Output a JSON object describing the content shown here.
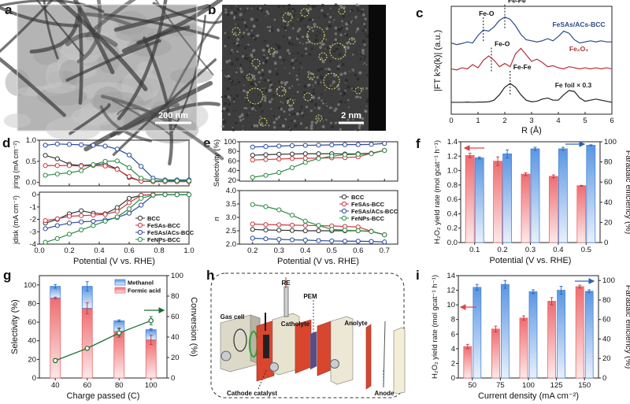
{
  "figure": {
    "panel_labels": {
      "a": "a",
      "b": "b",
      "c": "c",
      "d": "d",
      "e": "e",
      "f": "f",
      "g": "g",
      "h": "h",
      "i": "i"
    }
  },
  "images": {
    "a": {
      "scale_bar": "200 nm"
    },
    "b": {
      "scale_bar": "2 nm",
      "circle_color": "#e8e26a"
    }
  },
  "diagram_h": {
    "labels": {
      "re": "RE",
      "pem": "PEM",
      "gas_cell": "Gas cell",
      "catholyte": "Catholyte",
      "anolyte": "Anolyte",
      "cathode_catalyst": "Cathode catalyst",
      "anode": "Anode"
    }
  },
  "chart_data": [
    {
      "id": "c",
      "type": "line",
      "xlabel": "R (Å)",
      "ylabel": "|FT k³x(k)| (a.u.)",
      "xlim": [
        0,
        6
      ],
      "xticks": [
        "0",
        "1",
        "2",
        "3",
        "4",
        "5",
        "6"
      ],
      "ylim": [
        0,
        10
      ],
      "x": [
        0,
        0.2,
        0.4,
        0.6,
        0.8,
        1.0,
        1.2,
        1.4,
        1.6,
        1.8,
        2.0,
        2.2,
        2.4,
        2.6,
        2.8,
        3.0,
        3.2,
        3.4,
        3.6,
        3.8,
        4.0,
        4.2,
        4.4,
        4.6,
        4.8,
        5.0,
        5.2,
        5.4,
        5.6,
        5.8,
        6.0
      ],
      "series": [
        {
          "name": "FeSAs/ACs-BCC",
          "color": "#2b4a8b",
          "values": [
            6.6,
            6.45,
            6.55,
            6.7,
            6.6,
            7.3,
            7.8,
            7.7,
            8.1,
            8.7,
            9.0,
            8.8,
            8.2,
            7.4,
            6.9,
            6.8,
            6.7,
            6.8,
            7.0,
            6.8,
            7.2,
            7.7,
            7.5,
            6.9,
            6.6,
            6.7,
            6.8,
            6.7,
            6.8,
            6.7,
            6.7
          ]
        },
        {
          "name": "Fe₂O₃",
          "color": "#b0323a",
          "values": [
            4.2,
            4.1,
            4.3,
            4.2,
            4.6,
            4.3,
            5.0,
            5.4,
            5.0,
            4.4,
            4.7,
            4.4,
            5.6,
            6.1,
            5.5,
            4.9,
            5.1,
            4.8,
            4.4,
            4.5,
            4.3,
            4.2,
            4.4,
            4.3,
            4.2,
            4.3,
            4.2,
            4.3,
            4.2,
            4.3,
            4.2
          ]
        },
        {
          "name": "Fe foil × 0.3",
          "color": "#222222",
          "values": [
            1.1,
            1.1,
            1.1,
            1.12,
            1.1,
            1.12,
            1.12,
            1.15,
            1.3,
            1.8,
            2.5,
            2.85,
            2.5,
            1.8,
            1.3,
            1.15,
            1.2,
            1.4,
            1.5,
            1.3,
            1.3,
            1.8,
            2.2,
            2.1,
            1.5,
            1.2,
            1.3,
            1.4,
            1.3,
            1.2,
            1.1
          ]
        }
      ],
      "annotations": [
        {
          "text": "Fe-O",
          "x": 1.2,
          "series": 0
        },
        {
          "text": "Fe-Fe",
          "x": 2.0,
          "series": 0
        },
        {
          "text": "Fe-O",
          "x": 1.5,
          "series": 1
        },
        {
          "text": "Fe-Fe",
          "x": 2.2,
          "series": 2
        }
      ]
    },
    {
      "id": "d",
      "type": "line",
      "xlabel": "Potential (V vs. RHE)",
      "xlim": [
        0,
        1
      ],
      "xticks": [
        "0.0",
        "0.2",
        "0.4",
        "0.6",
        "0.8",
        "1.0"
      ],
      "x": [
        0.04,
        0.12,
        0.2,
        0.28,
        0.36,
        0.44,
        0.52,
        0.6,
        0.68,
        0.76,
        0.84,
        0.92,
        1.0
      ],
      "legend": "bottom-right",
      "subplots": [
        {
          "ylabel": "jring (mA cm⁻²)",
          "ylim": [
            -0.08,
            1.0
          ],
          "yticks": [
            "0.0",
            "0.5",
            "1.0"
          ],
          "series": [
            {
              "name": "BCC",
              "color": "#333333",
              "values": [
                0.64,
                0.56,
                0.43,
                0.4,
                0.42,
                0.44,
                0.32,
                0.12,
                0.03,
                0.03,
                0.03,
                0.03,
                0.03
              ]
            },
            {
              "name": "FeSAs-BCC",
              "color": "#c8383e",
              "values": [
                0.4,
                0.4,
                0.4,
                0.39,
                0.4,
                0.39,
                0.31,
                0.14,
                0.03,
                0.02,
                0.02,
                0.02,
                0.02
              ]
            },
            {
              "name": "FeSAs/ACs-BCC",
              "color": "#2b4a9b",
              "values": [
                0.88,
                0.91,
                0.9,
                0.89,
                0.88,
                0.86,
                0.79,
                0.65,
                0.38,
                0.1,
                0.06,
                0.06,
                0.06
              ]
            },
            {
              "name": "FeNPs-BCC",
              "color": "#2e8b45",
              "values": [
                0.17,
                0.2,
                0.23,
                0.28,
                0.42,
                0.5,
                0.51,
                0.35,
                0.1,
                0.04,
                0.04,
                0.04,
                0.04
              ]
            }
          ]
        },
        {
          "ylabel": "jdisk (mA cm⁻²)",
          "ylim": [
            -4,
            0.2
          ],
          "yticks": [
            "-4",
            "-3",
            "-2",
            "-1",
            "0"
          ],
          "series": [
            {
              "name": "BCC",
              "color": "#333333",
              "values": [
                -2.3,
                -2.0,
                -1.55,
                -1.3,
                -1.5,
                -1.55,
                -1.05,
                -0.3,
                -0.05,
                0,
                0,
                0,
                0
              ]
            },
            {
              "name": "FeSAs-BCC",
              "color": "#c8383e",
              "values": [
                -2.1,
                -1.95,
                -1.75,
                -1.7,
                -1.65,
                -1.6,
                -1.35,
                -0.65,
                -0.05,
                0,
                0,
                0,
                0
              ]
            },
            {
              "name": "FeSAs/ACs-BCC",
              "color": "#2b4a9b",
              "values": [
                -2.75,
                -2.5,
                -2.3,
                -2.2,
                -2.15,
                -2.05,
                -1.85,
                -1.5,
                -0.85,
                -0.05,
                0,
                0,
                0
              ]
            },
            {
              "name": "FeNPs-BCC",
              "color": "#2e8b45",
              "values": [
                -3.85,
                -3.55,
                -3.2,
                -2.85,
                -2.5,
                -2.15,
                -1.8,
                -1.15,
                -0.3,
                -0.03,
                0,
                0,
                0
              ]
            }
          ]
        }
      ]
    },
    {
      "id": "e",
      "type": "line",
      "xlabel": "Potential (V vs. RHE)",
      "xlim": [
        0.15,
        0.75
      ],
      "xticks": [
        "0.2",
        "0.3",
        "0.4",
        "0.5",
        "0.6",
        "0.7"
      ],
      "x": [
        0.2,
        0.25,
        0.3,
        0.35,
        0.4,
        0.45,
        0.5,
        0.55,
        0.6,
        0.65,
        0.7
      ],
      "legend": "top-right of lower plot",
      "subplots": [
        {
          "ylabel": "Selectivity (%)",
          "ylim": [
            18,
            100
          ],
          "yticks": [
            "20",
            "40",
            "60",
            "80",
            "100"
          ],
          "series": [
            {
              "name": "BCC",
              "color": "#333333",
              "values": [
                72,
                73,
                74,
                74.5,
                75,
                75,
                75,
                74.5,
                75,
                76,
                82
              ]
            },
            {
              "name": "FeSAs-BCC",
              "color": "#c8383e",
              "values": [
                62,
                63,
                64,
                65,
                65.5,
                66,
                66.5,
                67,
                68.5,
                76,
                82
              ]
            },
            {
              "name": "FeSAs/ACs-BCC",
              "color": "#2b4a9b",
              "values": [
                89,
                90,
                91,
                92,
                92.5,
                93,
                93.5,
                94,
                94,
                94.5,
                96.5
              ]
            },
            {
              "name": "FeNPs-BCC",
              "color": "#2e8b45",
              "values": [
                26,
                30,
                36,
                46,
                57,
                65,
                70,
                73,
                74,
                75,
                82
              ]
            }
          ]
        },
        {
          "ylabel": "n",
          "ylim": [
            2.0,
            4.0
          ],
          "yticks": [
            "2.0",
            "2.5",
            "3.0",
            "3.5",
            "4.0"
          ],
          "series": [
            {
              "name": "BCC",
              "color": "#333333",
              "values": [
                2.55,
                2.53,
                2.52,
                2.51,
                2.5,
                2.5,
                2.5,
                2.5,
                2.5,
                2.48,
                2.35
              ]
            },
            {
              "name": "FeSAs-BCC",
              "color": "#c8383e",
              "values": [
                2.75,
                2.73,
                2.72,
                2.71,
                2.7,
                2.69,
                2.68,
                2.66,
                2.64,
                2.48,
                2.35
              ]
            },
            {
              "name": "FeSAs/ACs-BCC",
              "color": "#2b4a9b",
              "values": [
                2.22,
                2.2,
                2.18,
                2.16,
                2.15,
                2.13,
                2.12,
                2.11,
                2.11,
                2.1,
                2.08
              ]
            },
            {
              "name": "FeNPs-BCC",
              "color": "#2e8b45",
              "values": [
                3.48,
                3.4,
                3.28,
                3.08,
                2.86,
                2.7,
                2.55,
                2.52,
                2.5,
                2.47,
                2.35
              ]
            }
          ]
        }
      ]
    },
    {
      "id": "f",
      "type": "bar",
      "xlabel": "Potential (V vs. RHE)",
      "categories": [
        "0.1",
        "0.2",
        "0.3",
        "0.4",
        "0.5"
      ],
      "ylabel": "H₂O₂ yield rate (mol gcat⁻¹ h⁻¹)",
      "ylim": [
        0,
        1.4
      ],
      "yticks": [
        "0.0",
        "0.2",
        "0.4",
        "0.6",
        "0.8",
        "1.0",
        "1.2",
        "1.4"
      ],
      "y2label": "Faradaic efficiency (%)",
      "y2lim": [
        0,
        100
      ],
      "y2ticks": [
        "0",
        "20",
        "40",
        "60",
        "80",
        "100"
      ],
      "series": [
        {
          "axis": "left",
          "color": "#e8686c",
          "values": [
            1.21,
            1.13,
            0.95,
            0.92,
            0.79
          ],
          "errors": [
            0.03,
            0.06,
            0.02,
            0.02,
            0.005
          ]
        },
        {
          "axis": "right",
          "color": "#4a86d8",
          "values": [
            84,
            88,
            93,
            93,
            96.5
          ],
          "errors": [
            1,
            4,
            1.5,
            1.5,
            0.5
          ]
        }
      ]
    },
    {
      "id": "g",
      "type": "bar",
      "xlabel": "Charge passed (C)",
      "categories": [
        "40",
        "60",
        "80",
        "100"
      ],
      "ylabel": "Selectivity (%)",
      "ylim": [
        0,
        110
      ],
      "yticks": [
        "0",
        "20",
        "40",
        "60",
        "80",
        "100"
      ],
      "y2label": "Conversion (%)",
      "y2lim": [
        0,
        100
      ],
      "y2ticks": [
        "0",
        "20",
        "40",
        "60",
        "80",
        "100"
      ],
      "legend": "top-right",
      "series": [
        {
          "name": "Formic acid",
          "type": "stacked-bar",
          "axis": "left",
          "color": "#e8686c",
          "values": [
            86,
            75,
            50,
            41
          ],
          "errors": [
            1,
            6,
            4,
            5
          ]
        },
        {
          "name": "Methanol",
          "type": "stacked-bar",
          "axis": "left",
          "color": "#4a86d8",
          "values": [
            12.5,
            23.5,
            11.5,
            11
          ],
          "errors": [
            2,
            5,
            1,
            1
          ]
        },
        {
          "type": "line",
          "axis": "right",
          "color": "#1e6b32",
          "values": [
            17,
            29,
            44,
            56
          ],
          "errors": [
            2,
            1,
            4,
            4
          ]
        }
      ]
    },
    {
      "id": "i",
      "type": "bar",
      "xlabel": "Current density (mA cm⁻²)",
      "categories": [
        "50",
        "75",
        "100",
        "125",
        "150"
      ],
      "ylabel": "H₂O₂ yield rate (mol gcat⁻¹ h⁻¹)",
      "ylim": [
        0,
        14
      ],
      "yticks": [
        "0",
        "2",
        "4",
        "6",
        "8",
        "10",
        "12",
        "14"
      ],
      "y2label": "Faradaic efficiency (%)",
      "y2lim": [
        0,
        105
      ],
      "y2ticks": [
        "0",
        "20",
        "40",
        "60",
        "80",
        "100"
      ],
      "series": [
        {
          "axis": "left",
          "color": "#e8686c",
          "values": [
            4.3,
            6.7,
            8.2,
            10.5,
            12.5
          ],
          "errors": [
            0.3,
            0.4,
            0.3,
            0.5,
            0.2
          ]
        },
        {
          "axis": "right",
          "color": "#4a86d8",
          "values": [
            93,
            96,
            88.5,
            90,
            89
          ],
          "errors": [
            3,
            4,
            2,
            4,
            1.5
          ]
        }
      ]
    }
  ]
}
